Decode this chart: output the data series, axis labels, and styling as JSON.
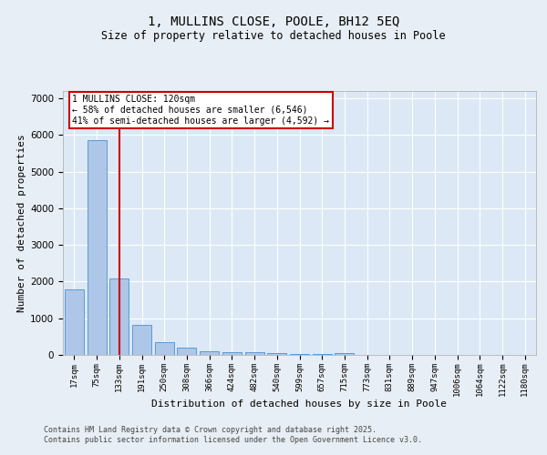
{
  "title": "1, MULLINS CLOSE, POOLE, BH12 5EQ",
  "subtitle": "Size of property relative to detached houses in Poole",
  "xlabel": "Distribution of detached houses by size in Poole",
  "ylabel": "Number of detached properties",
  "categories": [
    "17sqm",
    "75sqm",
    "133sqm",
    "191sqm",
    "250sqm",
    "308sqm",
    "366sqm",
    "424sqm",
    "482sqm",
    "540sqm",
    "599sqm",
    "657sqm",
    "715sqm",
    "773sqm",
    "831sqm",
    "889sqm",
    "947sqm",
    "1006sqm",
    "1064sqm",
    "1122sqm",
    "1180sqm"
  ],
  "values": [
    1800,
    5850,
    2080,
    820,
    340,
    200,
    105,
    75,
    65,
    50,
    35,
    25,
    60,
    5,
    5,
    5,
    3,
    3,
    3,
    3,
    3
  ],
  "bar_color": "#aec6e8",
  "bar_edge_color": "#5b9bd5",
  "red_line_index": 2,
  "annotation_title": "1 MULLINS CLOSE: 120sqm",
  "annotation_line1": "← 58% of detached houses are smaller (6,546)",
  "annotation_line2": "41% of semi-detached houses are larger (4,592) →",
  "annotation_box_color": "#ffffff",
  "annotation_box_edge": "#cc0000",
  "red_line_color": "#cc0000",
  "ylim": [
    0,
    7200
  ],
  "yticks": [
    0,
    1000,
    2000,
    3000,
    4000,
    5000,
    6000,
    7000
  ],
  "footer1": "Contains HM Land Registry data © Crown copyright and database right 2025.",
  "footer2": "Contains public sector information licensed under the Open Government Licence v3.0.",
  "bg_color": "#e8eef5",
  "plot_bg_color": "#dce8f5"
}
